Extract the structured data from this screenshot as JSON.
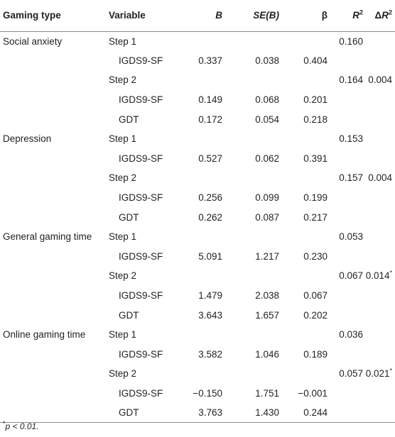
{
  "header": {
    "gaming_type": "Gaming type",
    "variable": "Variable",
    "b": "B",
    "se_b": "SE(B)",
    "beta": "β",
    "r2_base": "R",
    "r2_sup": "2",
    "dr2_delta": "Δ",
    "dr2_base": "R",
    "dr2_sup": "2"
  },
  "rows": [
    {
      "group": "Social anxiety",
      "variable": "Step 1",
      "b": "",
      "se": "",
      "beta": "",
      "r2": "0.160",
      "dr2": "",
      "star": ""
    },
    {
      "group": "",
      "variable": "IGDS9-SF",
      "b": "0.337",
      "se": "0.038",
      "beta": "0.404",
      "r2": "",
      "dr2": "",
      "star": ""
    },
    {
      "group": "",
      "variable": "Step 2",
      "b": "",
      "se": "",
      "beta": "",
      "r2": "0.164",
      "dr2": "0.004",
      "star": ""
    },
    {
      "group": "",
      "variable": "IGDS9-SF",
      "b": "0.149",
      "se": "0.068",
      "beta": "0.201",
      "r2": "",
      "dr2": "",
      "star": ""
    },
    {
      "group": "",
      "variable": "GDT",
      "b": "0.172",
      "se": "0.054",
      "beta": "0.218",
      "r2": "",
      "dr2": "",
      "star": ""
    },
    {
      "group": "Depression",
      "variable": "Step 1",
      "b": "",
      "se": "",
      "beta": "",
      "r2": "0.153",
      "dr2": "",
      "star": ""
    },
    {
      "group": "",
      "variable": "IGDS9-SF",
      "b": "0.527",
      "se": "0.062",
      "beta": "0.391",
      "r2": "",
      "dr2": "",
      "star": ""
    },
    {
      "group": "",
      "variable": "Step 2",
      "b": "",
      "se": "",
      "beta": "",
      "r2": "0.157",
      "dr2": "0.004",
      "star": ""
    },
    {
      "group": "",
      "variable": "IGDS9-SF",
      "b": "0.256",
      "se": "0.099",
      "beta": "0.199",
      "r2": "",
      "dr2": "",
      "star": ""
    },
    {
      "group": "",
      "variable": "GDT",
      "b": "0.262",
      "se": "0.087",
      "beta": "0.217",
      "r2": "",
      "dr2": "",
      "star": ""
    },
    {
      "group": "General gaming time",
      "variable": "Step 1",
      "b": "",
      "se": "",
      "beta": "",
      "r2": "0.053",
      "dr2": "",
      "star": ""
    },
    {
      "group": "",
      "variable": "IGDS9-SF",
      "b": "5.091",
      "se": "1.217",
      "beta": "0.230",
      "r2": "",
      "dr2": "",
      "star": ""
    },
    {
      "group": "",
      "variable": "Step 2",
      "b": "",
      "se": "",
      "beta": "",
      "r2": "0.067",
      "dr2": "0.014",
      "star": "*"
    },
    {
      "group": "",
      "variable": "IGDS9-SF",
      "b": "1.479",
      "se": "2.038",
      "beta": "0.067",
      "r2": "",
      "dr2": "",
      "star": ""
    },
    {
      "group": "",
      "variable": "GDT",
      "b": "3.643",
      "se": "1.657",
      "beta": "0.202",
      "r2": "",
      "dr2": "",
      "star": ""
    },
    {
      "group": "Online gaming time",
      "variable": "Step 1",
      "b": "",
      "se": "",
      "beta": "",
      "r2": "0.036",
      "dr2": "",
      "star": ""
    },
    {
      "group": "",
      "variable": "IGDS9-SF",
      "b": "3.582",
      "se": "1.046",
      "beta": "0.189",
      "r2": "",
      "dr2": "",
      "star": ""
    },
    {
      "group": "",
      "variable": "Step 2",
      "b": "",
      "se": "",
      "beta": "",
      "r2": "0.057",
      "dr2": "0.021",
      "star": "*"
    },
    {
      "group": "",
      "variable": "IGDS9-SF",
      "b": "−0.150",
      "se": "1.751",
      "beta": "−0.001",
      "r2": "",
      "dr2": "",
      "star": ""
    },
    {
      "group": "",
      "variable": "GDT",
      "b": "3.763",
      "se": "1.430",
      "beta": "0.244",
      "r2": "",
      "dr2": "",
      "star": ""
    }
  ],
  "footnote": {
    "star": "*",
    "text": "p < 0.01."
  }
}
